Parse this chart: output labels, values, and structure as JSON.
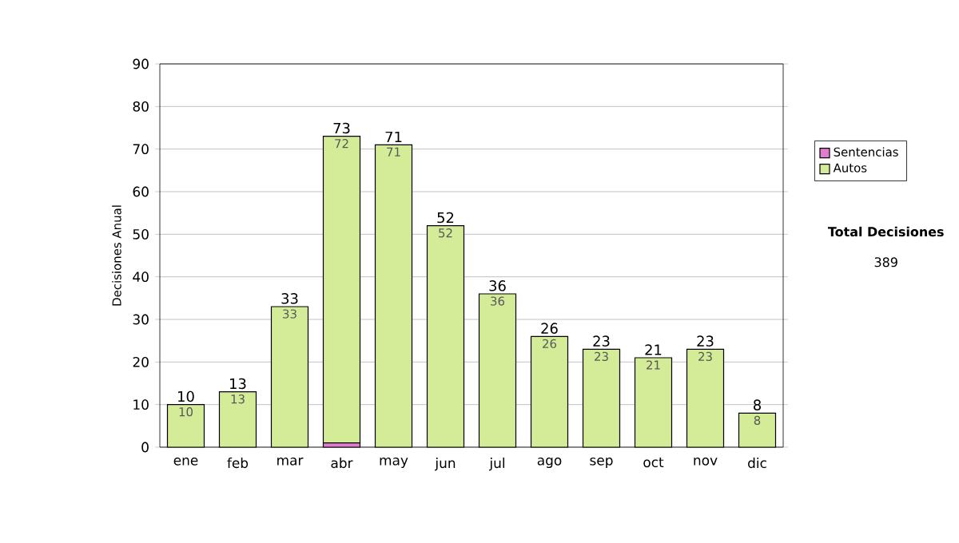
{
  "chart_data": {
    "type": "bar",
    "stacked": true,
    "ylabel": "Decisiones Anual",
    "categories": [
      "ene",
      "feb",
      "mar",
      "abr",
      "may",
      "jun",
      "jul",
      "ago",
      "sep",
      "oct",
      "nov",
      "dic"
    ],
    "series": [
      {
        "name": "Sentencias",
        "color": "#e07ccc",
        "values": [
          0,
          0,
          0,
          1,
          0,
          0,
          0,
          0,
          0,
          0,
          0,
          0
        ]
      },
      {
        "name": "Autos",
        "color": "#d4ec98",
        "values": [
          10,
          13,
          33,
          72,
          71,
          52,
          36,
          26,
          23,
          21,
          23,
          8
        ],
        "value_labels": [
          "10",
          "13",
          "33",
          "72",
          "71",
          "52",
          "36",
          "26",
          "23",
          "21",
          "23",
          "8"
        ]
      }
    ],
    "totals": [
      "10",
      "13",
      "33",
      "73",
      "71",
      "52",
      "36",
      "26",
      "23",
      "21",
      "23",
      "8"
    ],
    "ylim": [
      0,
      90
    ],
    "yticks": [
      0,
      10,
      20,
      30,
      40,
      50,
      60,
      70,
      80,
      90
    ],
    "grid": "y",
    "legend": "right",
    "annotations": [
      "Total Decisiones",
      "389"
    ]
  }
}
